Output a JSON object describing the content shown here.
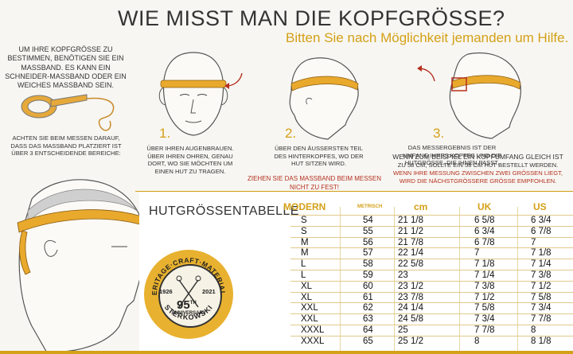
{
  "heading": {
    "title": "WIE MISST MAN DIE KOPFGRÖSSE?",
    "subtitle": "Bitten Sie nach Möglichkeit jemanden um Hilfe."
  },
  "intro": "UM IHRE KOPFGRÖSSE ZU BESTIMMEN, BENÖTIGEN SIE EIN MASSBAND. ES KANN EIN SCHNEIDER-MASSBAND ODER EIN WEICHES MASSBAND SEIN.",
  "attention": "ACHTEN SIE BEIM MESSEN DARAUF, DASS DAS MASSBAND PLATZIERT IST ÜBER 3 ENTSCHEIDENDE BEREICHE:",
  "steps": [
    {
      "num": "1.",
      "text": "ÜBER IHREN AUGENBRAUEN. ÜBER IHREN OHREN, GENAU DORT, WO SIE MÖCHTEN UM EINEN HUT ZU TRAGEN."
    },
    {
      "num": "2.",
      "text": "ÜBER DEN ÄUSSERSTEN TEIL DES HINTERKOPFES, WO DER HUT SITZEN WIRD."
    },
    {
      "num": "3.",
      "text": "DAS MESSERGEBNIS IST DER UMFANG IHRES KOPFES UND DIE HUTGRÖSSE, DIE IHNEN PASST."
    }
  ],
  "warning": "ZIEHEN SIE DAS MASSBAND BEIM MESSEN NICHT ZU FEST!",
  "example": {
    "line1": "WENN ZUM BEISPIEL EIN KOPFUMFANG GLEICH IST",
    "line2": "ZU 58 cm, SOLLTE EIN 58 cm HUT BESTELLT WERDEN.",
    "line3": "WENN IHRE MESSUNG ZWISCHEN ZWEI GRÖSSEN LIEGT, WIRD DIE NÄCHSTGRÖSSERE GRÖSSE EMPFOHLEN."
  },
  "table": {
    "title": "HUTGRÖSSENTABELLE",
    "headers": {
      "modern": "MODERN",
      "metric": "METRISCH",
      "cm": "cm",
      "uk": "UK",
      "us": "US"
    },
    "rows": [
      [
        "S",
        "54",
        "21 1/8",
        "6 5/8",
        "6 3/4"
      ],
      [
        "S",
        "55",
        "21 1/2",
        "6 3/4",
        "6 7/8"
      ],
      [
        "M",
        "56",
        "21 7/8",
        "6 7/8",
        "7"
      ],
      [
        "M",
        "57",
        "22 1/4",
        "7",
        "7 1/8"
      ],
      [
        "L",
        "58",
        "22 5/8",
        "7 1/8",
        "7 1/4"
      ],
      [
        "L",
        "59",
        "23",
        "7 1/4",
        "7 3/8"
      ],
      [
        "XL",
        "60",
        "23 1/2",
        "7 3/8",
        "7 1/2"
      ],
      [
        "XL",
        "61",
        "23 7/8",
        "7 1/2",
        "7 5/8"
      ],
      [
        "XXL",
        "62",
        "24 1/4",
        "7 5/8",
        "7 3/4"
      ],
      [
        "XXL",
        "63",
        "24 5/8",
        "7 3/4",
        "7 7/8"
      ],
      [
        "XXXL",
        "64",
        "25",
        "7 7/8",
        "8"
      ],
      [
        "XXXL",
        "65",
        "25 1/2",
        "8",
        "8 1/8"
      ]
    ]
  },
  "seal": {
    "top": "HERITAGE·CRAFT·MATERIALS",
    "year_left": "1926",
    "year_right": "2021",
    "anniversary_num": "95",
    "anniversary_sup": "TH",
    "anniversary_word": "ANNIVERSARY",
    "brand": "STERKOWSKI"
  },
  "colors": {
    "accent": "#d4a017",
    "warning": "#b5301f"
  }
}
